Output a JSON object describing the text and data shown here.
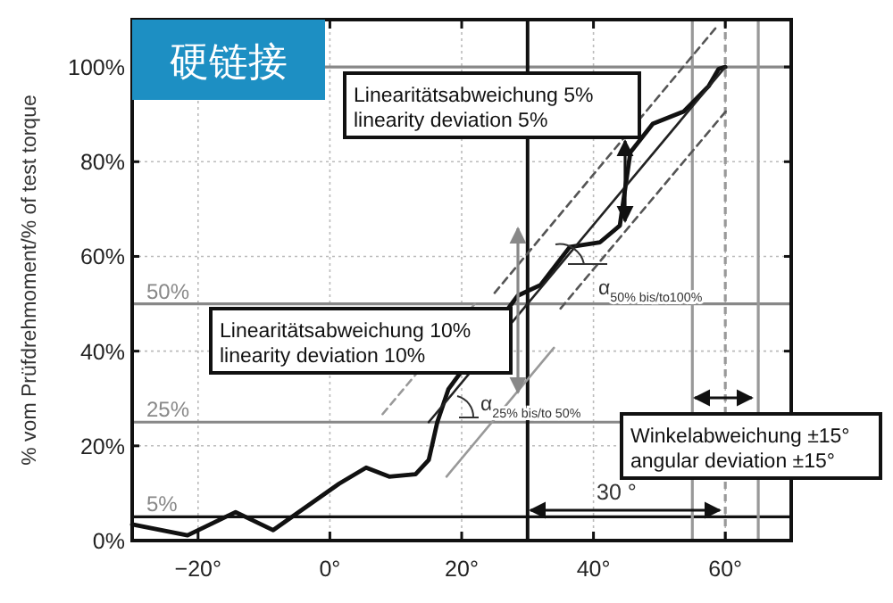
{
  "chart_data": {
    "type": "line",
    "title": "硬链接",
    "ylabel": "% vom Prüfdrehmoment/% of test torque",
    "xlim": [
      -30,
      70
    ],
    "ylim": [
      0,
      110
    ],
    "xticks": [
      {
        "value": -20,
        "label": "−20°"
      },
      {
        "value": 0,
        "label": "0°"
      },
      {
        "value": 20,
        "label": "20°"
      },
      {
        "value": 40,
        "label": "40°"
      },
      {
        "value": 60,
        "label": "60°"
      }
    ],
    "yticks": [
      {
        "value": 0,
        "label": "0%"
      },
      {
        "value": 20,
        "label": "20%"
      },
      {
        "value": 40,
        "label": "40%"
      },
      {
        "value": 60,
        "label": "60%"
      },
      {
        "value": 80,
        "label": "80%"
      },
      {
        "value": 100,
        "label": "100%"
      }
    ],
    "grid": true,
    "marker": "none",
    "series": [
      {
        "color": "#111111",
        "line_style": "solid",
        "x": [
          -30,
          -21.6,
          -14.3,
          -8.6,
          1.4,
          5.5,
          9,
          13,
          15,
          16.3,
          18,
          28.5,
          32,
          36.4,
          41,
          44,
          45.6,
          49,
          53.7,
          57.5,
          59,
          60
        ],
        "values": [
          3.4,
          1.1,
          6,
          2.2,
          12,
          15.4,
          13.5,
          14,
          17,
          25,
          32,
          51.7,
          54,
          62,
          63,
          66.5,
          82,
          88,
          90.6,
          96,
          99.6,
          100
        ]
      },
      {
        "color": "#222222",
        "line_style": "solid",
        "x": [
          15,
          60
        ],
        "values": [
          25,
          100
        ]
      },
      {
        "color": "#555555",
        "line_style": "dashed",
        "x": [
          25,
          59
        ],
        "values": [
          52.3,
          109
        ]
      },
      {
        "color": "#555555",
        "line_style": "dashed",
        "x": [
          35,
          60.3
        ],
        "values": [
          49,
          91
        ]
      },
      {
        "color": "#999999",
        "line_style": "solid",
        "x": [
          17.7,
          34
        ],
        "values": [
          13.5,
          40.7
        ]
      },
      {
        "color": "#999999",
        "line_style": "dashed",
        "x": [
          8,
          22
        ],
        "values": [
          26.7,
          50
        ]
      }
    ],
    "ref_lines": [
      {
        "axis": "y",
        "value": 5,
        "label": "5%",
        "color": "#111111"
      },
      {
        "axis": "y",
        "value": 25,
        "label": "25%",
        "color": "#888888"
      },
      {
        "axis": "y",
        "value": 50,
        "label": "50%",
        "color": "#888888"
      },
      {
        "axis": "y",
        "value": 100,
        "color": "#888888"
      },
      {
        "axis": "x",
        "value": 30,
        "color": "#111111"
      },
      {
        "axis": "x",
        "value": 55,
        "color": "#999999"
      },
      {
        "axis": "x",
        "value": 60,
        "color": "#999999",
        "line_style": "dashed"
      },
      {
        "axis": "x",
        "value": 65,
        "color": "#999999"
      }
    ],
    "annotations": [
      "Linearitätsabweichung 5%\nlinearity deviation 5%",
      "Linearitätsabweichung 10%\nlinearity deviation 10%",
      "α$_{50% bis/to100%}$",
      "α$_{25% bis/to 50%}$",
      "Winkelabweichung ±15°\nangular deviation ±15°",
      "30 °"
    ]
  }
}
